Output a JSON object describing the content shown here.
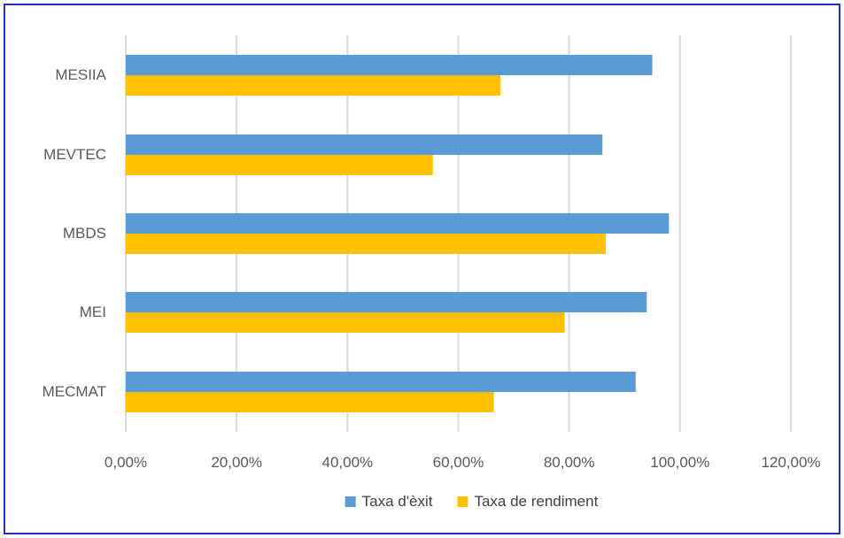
{
  "chart_data": {
    "type": "bar",
    "orientation": "horizontal",
    "categories": [
      "MESIIA",
      "MEVTEC",
      "MBDS",
      "MEI",
      "MECMAT"
    ],
    "series": [
      {
        "name": "Taxa d'èxit",
        "color": "#5b9bd5",
        "values": [
          0.95,
          0.86,
          0.98,
          0.94,
          0.92
        ]
      },
      {
        "name": "Taxa de rendiment",
        "color": "#ffc000",
        "values": [
          0.676,
          0.554,
          0.866,
          0.792,
          0.664
        ]
      }
    ],
    "x_ticks": [
      "0,00%",
      "20,00%",
      "40,00%",
      "60,00%",
      "80,00%",
      "100,00%",
      "120,00%"
    ],
    "xlim": [
      0,
      1.2
    ],
    "grid": true,
    "legend": "bottom",
    "title": "",
    "xlabel": "",
    "ylabel": ""
  }
}
